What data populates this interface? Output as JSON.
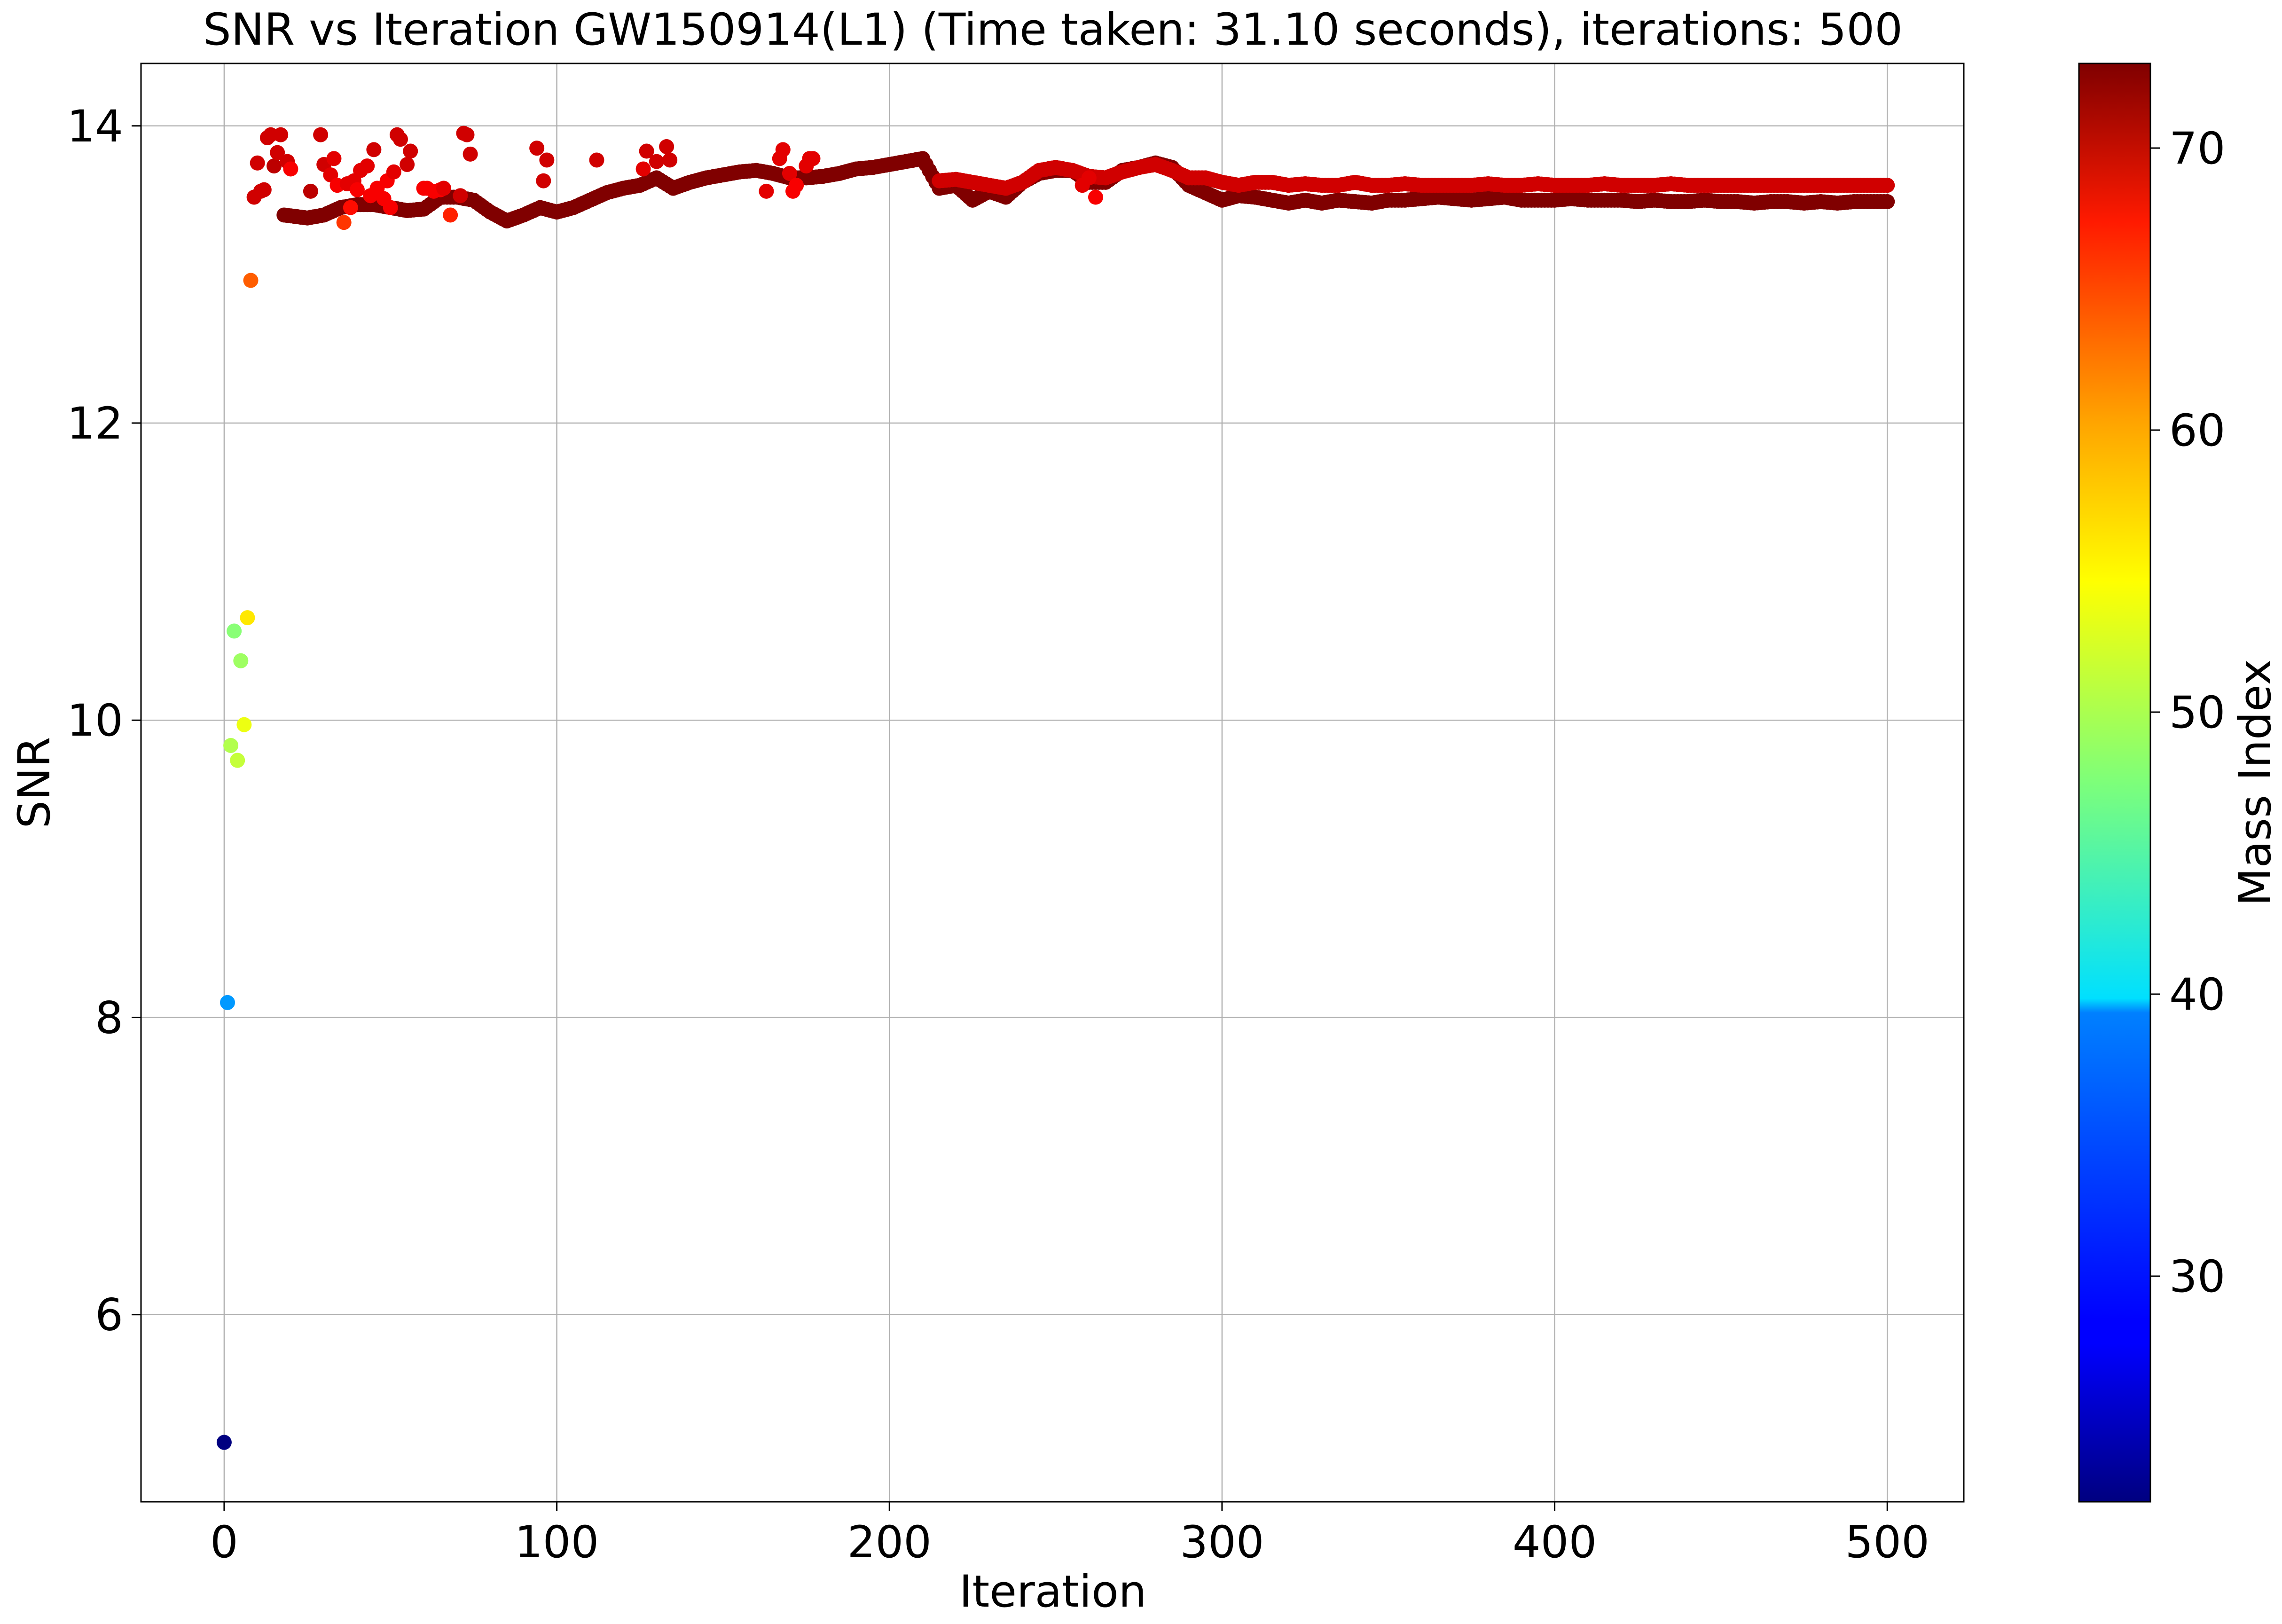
{
  "chart_data": {
    "type": "scatter",
    "title": "SNR vs Iteration GW150914(L1) (Time taken: 31.10 seconds), iterations: 500",
    "xlabel": "Iteration",
    "ylabel": "SNR",
    "xlim": [
      -25,
      523
    ],
    "ylim": [
      4.74,
      14.42
    ],
    "xticks": [
      0,
      100,
      200,
      300,
      400,
      500
    ],
    "xtick_labels": [
      "0",
      "100",
      "200",
      "300",
      "400",
      "500"
    ],
    "yticks": [
      6,
      8,
      10,
      12,
      14
    ],
    "ytick_labels": [
      "6",
      "8",
      "10",
      "12",
      "14"
    ],
    "grid": true,
    "colorbar": {
      "label": "Mass Index",
      "colormap": "jet",
      "range": [
        22,
        73
      ],
      "ticks": [
        30,
        40,
        50,
        60,
        70
      ],
      "tick_labels": [
        "30",
        "40",
        "50",
        "60",
        "70"
      ]
    },
    "early_points": [
      {
        "x": 0,
        "y": 5.14,
        "c": 22
      },
      {
        "x": 1,
        "y": 8.1,
        "c": 36
      },
      {
        "x": 2,
        "y": 9.83,
        "c": 50
      },
      {
        "x": 3,
        "y": 10.6,
        "c": 48
      },
      {
        "x": 4,
        "y": 9.73,
        "c": 51
      },
      {
        "x": 5,
        "y": 10.4,
        "c": 49
      },
      {
        "x": 6,
        "y": 9.97,
        "c": 53
      },
      {
        "x": 7,
        "y": 10.69,
        "c": 55
      },
      {
        "x": 8,
        "y": 12.96,
        "c": 62
      }
    ],
    "scattered_points": [
      {
        "x": 9,
        "y": 13.52,
        "c": 69
      },
      {
        "x": 10,
        "y": 13.75,
        "c": 69
      },
      {
        "x": 11,
        "y": 13.56,
        "c": 69
      },
      {
        "x": 12,
        "y": 13.57,
        "c": 69
      },
      {
        "x": 13,
        "y": 13.92,
        "c": 69
      },
      {
        "x": 14,
        "y": 13.94,
        "c": 69
      },
      {
        "x": 15,
        "y": 13.73,
        "c": 70
      },
      {
        "x": 16,
        "y": 13.82,
        "c": 69
      },
      {
        "x": 17,
        "y": 13.94,
        "c": 69
      },
      {
        "x": 19,
        "y": 13.76,
        "c": 69
      },
      {
        "x": 20,
        "y": 13.71,
        "c": 67
      },
      {
        "x": 26,
        "y": 13.56,
        "c": 70
      },
      {
        "x": 29,
        "y": 13.94,
        "c": 69
      },
      {
        "x": 30,
        "y": 13.74,
        "c": 69
      },
      {
        "x": 32,
        "y": 13.67,
        "c": 68
      },
      {
        "x": 33,
        "y": 13.78,
        "c": 68
      },
      {
        "x": 34,
        "y": 13.6,
        "c": 67
      },
      {
        "x": 36,
        "y": 13.35,
        "c": 64
      },
      {
        "x": 37,
        "y": 13.61,
        "c": 68
      },
      {
        "x": 38,
        "y": 13.45,
        "c": 66
      },
      {
        "x": 39,
        "y": 13.63,
        "c": 68
      },
      {
        "x": 40,
        "y": 13.57,
        "c": 67
      },
      {
        "x": 41,
        "y": 13.7,
        "c": 68
      },
      {
        "x": 43,
        "y": 13.73,
        "c": 68
      },
      {
        "x": 44,
        "y": 13.53,
        "c": 67
      },
      {
        "x": 45,
        "y": 13.84,
        "c": 69
      },
      {
        "x": 46,
        "y": 13.58,
        "c": 67
      },
      {
        "x": 48,
        "y": 13.51,
        "c": 67
      },
      {
        "x": 49,
        "y": 13.63,
        "c": 67
      },
      {
        "x": 50,
        "y": 13.45,
        "c": 67
      },
      {
        "x": 51,
        "y": 13.69,
        "c": 68
      },
      {
        "x": 52,
        "y": 13.94,
        "c": 69
      },
      {
        "x": 53,
        "y": 13.91,
        "c": 69
      },
      {
        "x": 55,
        "y": 13.74,
        "c": 69
      },
      {
        "x": 56,
        "y": 13.83,
        "c": 69
      },
      {
        "x": 60,
        "y": 13.58,
        "c": 67
      },
      {
        "x": 61,
        "y": 13.58,
        "c": 67
      },
      {
        "x": 63,
        "y": 13.56,
        "c": 67
      },
      {
        "x": 65,
        "y": 13.57,
        "c": 67
      },
      {
        "x": 66,
        "y": 13.58,
        "c": 68
      },
      {
        "x": 68,
        "y": 13.4,
        "c": 65
      },
      {
        "x": 71,
        "y": 13.53,
        "c": 69
      },
      {
        "x": 72,
        "y": 13.95,
        "c": 69
      },
      {
        "x": 73,
        "y": 13.94,
        "c": 69
      },
      {
        "x": 74,
        "y": 13.81,
        "c": 69
      },
      {
        "x": 94,
        "y": 13.85,
        "c": 69
      },
      {
        "x": 96,
        "y": 13.63,
        "c": 69
      },
      {
        "x": 97,
        "y": 13.77,
        "c": 69
      },
      {
        "x": 112,
        "y": 13.77,
        "c": 69
      },
      {
        "x": 126,
        "y": 13.71,
        "c": 68
      },
      {
        "x": 127,
        "y": 13.83,
        "c": 69
      },
      {
        "x": 130,
        "y": 13.76,
        "c": 69
      },
      {
        "x": 133,
        "y": 13.86,
        "c": 69
      },
      {
        "x": 134,
        "y": 13.77,
        "c": 69
      },
      {
        "x": 163,
        "y": 13.56,
        "c": 68
      },
      {
        "x": 167,
        "y": 13.78,
        "c": 68
      },
      {
        "x": 168,
        "y": 13.84,
        "c": 68
      },
      {
        "x": 170,
        "y": 13.68,
        "c": 68
      },
      {
        "x": 171,
        "y": 13.56,
        "c": 67
      },
      {
        "x": 172,
        "y": 13.6,
        "c": 67
      },
      {
        "x": 175,
        "y": 13.73,
        "c": 68
      },
      {
        "x": 176,
        "y": 13.78,
        "c": 68
      },
      {
        "x": 177,
        "y": 13.78,
        "c": 68
      },
      {
        "x": 258,
        "y": 13.6,
        "c": 68
      },
      {
        "x": 260,
        "y": 13.65,
        "c": 68
      },
      {
        "x": 262,
        "y": 13.52,
        "c": 67
      }
    ],
    "trend_series": [
      {
        "name": "",
        "c": 73,
        "x": [
          18,
          25,
          30,
          35,
          40,
          45,
          50,
          55,
          60,
          65,
          70,
          75,
          80,
          85,
          90,
          95,
          100,
          105,
          110,
          115,
          120,
          125,
          130,
          135,
          140,
          145,
          150,
          155,
          160,
          165,
          170,
          175,
          180,
          185,
          190,
          195,
          200,
          205,
          210,
          215,
          220,
          225,
          230,
          235,
          240,
          245,
          250,
          255,
          260,
          265,
          270,
          275,
          280,
          285,
          290,
          295,
          300,
          305,
          310,
          315,
          320,
          325,
          330,
          335,
          340,
          345,
          350,
          355,
          360,
          365,
          370,
          375,
          380,
          385,
          390,
          395,
          400,
          405,
          410,
          415,
          420,
          425,
          430,
          435,
          440,
          445,
          450,
          455,
          460,
          465,
          470,
          475,
          480,
          485,
          490,
          495,
          500
        ],
        "y": [
          13.4,
          13.38,
          13.4,
          13.45,
          13.47,
          13.47,
          13.45,
          13.43,
          13.44,
          13.52,
          13.52,
          13.5,
          13.42,
          13.36,
          13.4,
          13.45,
          13.42,
          13.45,
          13.5,
          13.55,
          13.58,
          13.6,
          13.65,
          13.58,
          13.62,
          13.65,
          13.67,
          13.69,
          13.7,
          13.68,
          13.65,
          13.65,
          13.66,
          13.68,
          13.71,
          13.72,
          13.74,
          13.76,
          13.78,
          13.58,
          13.6,
          13.5,
          13.56,
          13.52,
          13.62,
          13.68,
          13.7,
          13.7,
          13.62,
          13.62,
          13.7,
          13.72,
          13.75,
          13.72,
          13.6,
          13.55,
          13.5,
          13.53,
          13.52,
          13.5,
          13.48,
          13.5,
          13.48,
          13.5,
          13.49,
          13.48,
          13.5,
          13.5,
          13.51,
          13.52,
          13.51,
          13.5,
          13.51,
          13.52,
          13.5,
          13.5,
          13.5,
          13.51,
          13.5,
          13.5,
          13.5,
          13.49,
          13.5,
          13.49,
          13.49,
          13.5,
          13.49,
          13.49,
          13.48,
          13.49,
          13.49,
          13.48,
          13.49,
          13.48,
          13.49,
          13.49,
          13.49
        ]
      },
      {
        "name": "",
        "c": 69,
        "x": [
          215,
          220,
          225,
          230,
          235,
          240,
          245,
          250,
          255,
          260,
          265,
          270,
          275,
          280,
          285,
          290,
          295,
          300,
          305,
          310,
          315,
          320,
          325,
          330,
          335,
          340,
          345,
          350,
          355,
          360,
          365,
          370,
          375,
          380,
          385,
          390,
          395,
          400,
          405,
          410,
          415,
          420,
          425,
          430,
          435,
          440,
          445,
          450,
          455,
          460,
          465,
          470,
          475,
          480,
          485,
          490,
          495,
          500
        ],
        "y": [
          13.63,
          13.64,
          13.62,
          13.6,
          13.58,
          13.62,
          13.7,
          13.72,
          13.7,
          13.66,
          13.65,
          13.69,
          13.72,
          13.74,
          13.7,
          13.65,
          13.65,
          13.62,
          13.6,
          13.62,
          13.62,
          13.6,
          13.61,
          13.6,
          13.6,
          13.62,
          13.6,
          13.6,
          13.61,
          13.6,
          13.6,
          13.6,
          13.6,
          13.61,
          13.6,
          13.6,
          13.61,
          13.6,
          13.6,
          13.6,
          13.61,
          13.6,
          13.6,
          13.6,
          13.61,
          13.6,
          13.6,
          13.6,
          13.6,
          13.6,
          13.6,
          13.6,
          13.6,
          13.6,
          13.6,
          13.6,
          13.6,
          13.6
        ]
      }
    ]
  }
}
